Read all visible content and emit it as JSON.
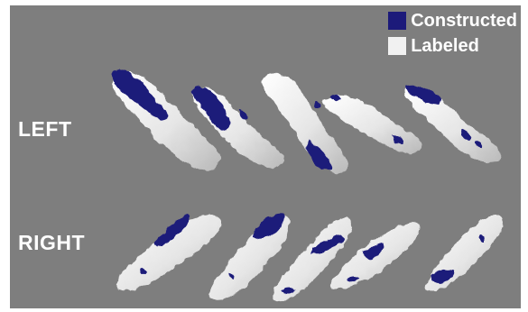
{
  "row_labels": {
    "left": "LEFT",
    "right": "RIGHT"
  },
  "legend": {
    "items": [
      {
        "label": "Constructed",
        "color": "#1c1a7a"
      },
      {
        "label": "Labeled",
        "color": "#f1f1f1"
      }
    ]
  },
  "colors": {
    "background": "#7e7e7e",
    "labeled_surface": "#f1f1f1",
    "constructed_surface": "#1c1a7a"
  }
}
